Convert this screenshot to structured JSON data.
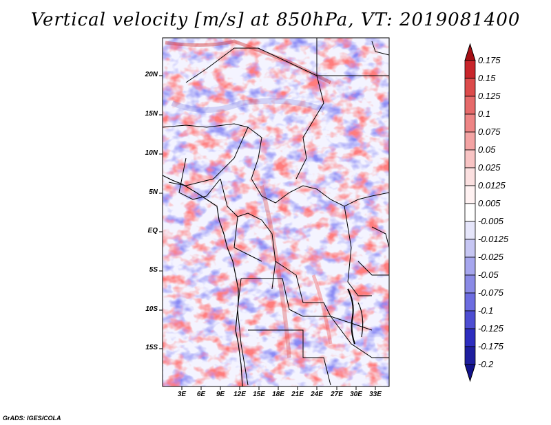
{
  "title": "Vertical velocity [m/s] at 850hPa, VT: 2019081400",
  "credit": "GrADS: IGES/COLA",
  "map": {
    "lat_labels": [
      "20N",
      "15N",
      "10N",
      "5N",
      "EQ",
      "5S",
      "10S",
      "15S"
    ],
    "lon_labels": [
      "3E",
      "6E",
      "9E",
      "12E",
      "15E",
      "18E",
      "21E",
      "24E",
      "27E",
      "30E",
      "33E"
    ]
  },
  "colorbar": {
    "labels": [
      "0.175",
      "0.15",
      "0.125",
      "0.1",
      "0.075",
      "0.05",
      "0.025",
      "0.0125",
      "0.005",
      "-0.005",
      "-0.0125",
      "-0.025",
      "-0.05",
      "-0.075",
      "-0.1",
      "-0.125",
      "-0.175",
      "-0.2"
    ],
    "colors": [
      "#a50f15",
      "#c8252b",
      "#dc4b4b",
      "#e66a6a",
      "#ee8585",
      "#f3a3a3",
      "#f8c4c4",
      "#fbe0e0",
      "#fff2f2",
      "#ffffff",
      "#e6e6fb",
      "#c6c6f3",
      "#a6a6ee",
      "#8a8ae6",
      "#6c6ce0",
      "#4d4dd2",
      "#2d2dbf",
      "#1e1e9e",
      "#12128a"
    ]
  },
  "chart_data": {
    "type": "heatmap",
    "title": "Vertical velocity [m/s] at 850hPa, VT: 2019081400",
    "x_ticks": [
      "3E",
      "6E",
      "9E",
      "12E",
      "15E",
      "18E",
      "21E",
      "24E",
      "27E",
      "30E",
      "33E"
    ],
    "y_ticks": [
      "20N",
      "15N",
      "10N",
      "5N",
      "EQ",
      "5S",
      "10S",
      "15S"
    ],
    "contour_levels": [
      -0.2,
      -0.175,
      -0.125,
      -0.1,
      -0.075,
      -0.05,
      -0.025,
      -0.0125,
      -0.005,
      0.005,
      0.0125,
      0.025,
      0.05,
      0.075,
      0.1,
      0.125,
      0.15,
      0.175
    ],
    "units": "m/s"
  }
}
